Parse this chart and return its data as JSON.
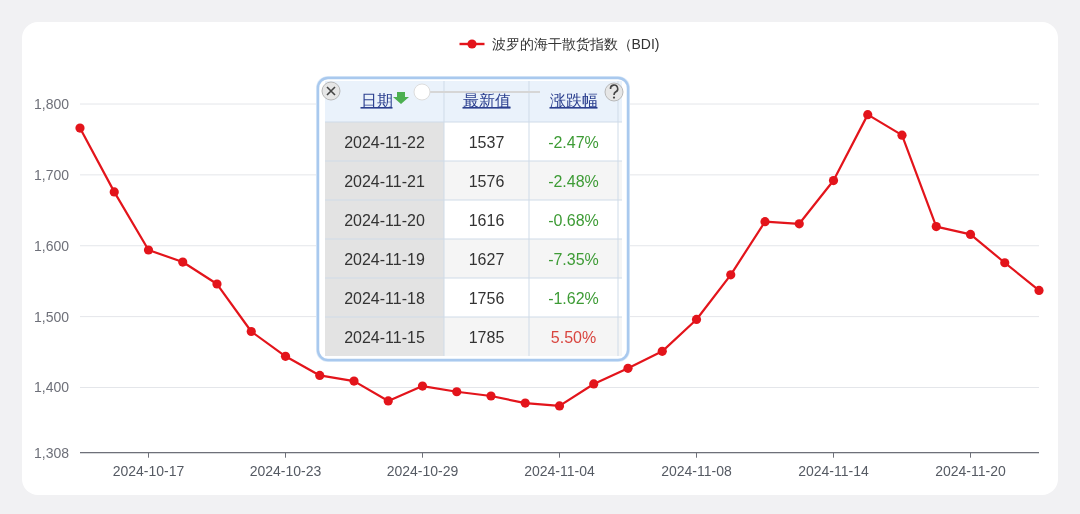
{
  "chart_data": [
    {
      "type": "line",
      "categories": [
        null,
        null,
        "2024-10-17",
        null,
        null,
        null,
        "2024-10-23",
        null,
        null,
        null,
        "2024-10-29",
        null,
        null,
        null,
        "2024-11-04",
        null,
        null,
        null,
        "2024-11-08",
        null,
        null,
        null,
        "2024-11-14",
        null,
        null,
        null,
        "2024-11-20",
        null,
        null
      ],
      "series": [
        {
          "name": "波罗的海干散货指数（BDI)",
          "color": "#e3141b",
          "values": [
            1766,
            1676,
            1594,
            1577,
            1546,
            1479,
            1444,
            1417,
            1409,
            1381,
            1402,
            1394,
            1388,
            1378,
            1374,
            1405,
            1427,
            1451,
            1496,
            1559,
            1634,
            1631,
            1692,
            1785,
            1756,
            1627,
            1616,
            1576,
            1537
          ]
        }
      ],
      "ylim": [
        1308,
        1800
      ],
      "yticks": [
        {
          "value": 1308,
          "label": "1,308"
        },
        {
          "value": 1400,
          "label": "1,400"
        },
        {
          "value": 1500,
          "label": "1,500"
        },
        {
          "value": 1600,
          "label": "1,600"
        },
        {
          "value": 1700,
          "label": "1,700"
        },
        {
          "value": 1800,
          "label": "1,800"
        }
      ],
      "grid": "y",
      "legend": "top",
      "marker": "circle",
      "line_style": "solid"
    },
    {
      "type": "other",
      "categories": [
        "日期",
        "最新值",
        "涨跌幅"
      ],
      "y_categories": [
        "2024-11-22",
        "2024-11-21",
        "2024-11-20",
        "2024-11-19",
        "2024-11-18",
        "2024-11-15"
      ],
      "cell_labels": [
        [
          "1537",
          "-2.47%"
        ],
        [
          "1576",
          "-2.48%"
        ],
        [
          "1616",
          "-0.68%"
        ],
        [
          "1627",
          "-7.35%"
        ],
        [
          "1756",
          "-1.62%"
        ],
        [
          "1785",
          "5.50%"
        ]
      ],
      "colors": [
        "#3d9b35",
        "#3d9b35",
        "#3d9b35",
        "#3d9b35",
        "#3d9b35",
        "#d9453f"
      ]
    }
  ]
}
